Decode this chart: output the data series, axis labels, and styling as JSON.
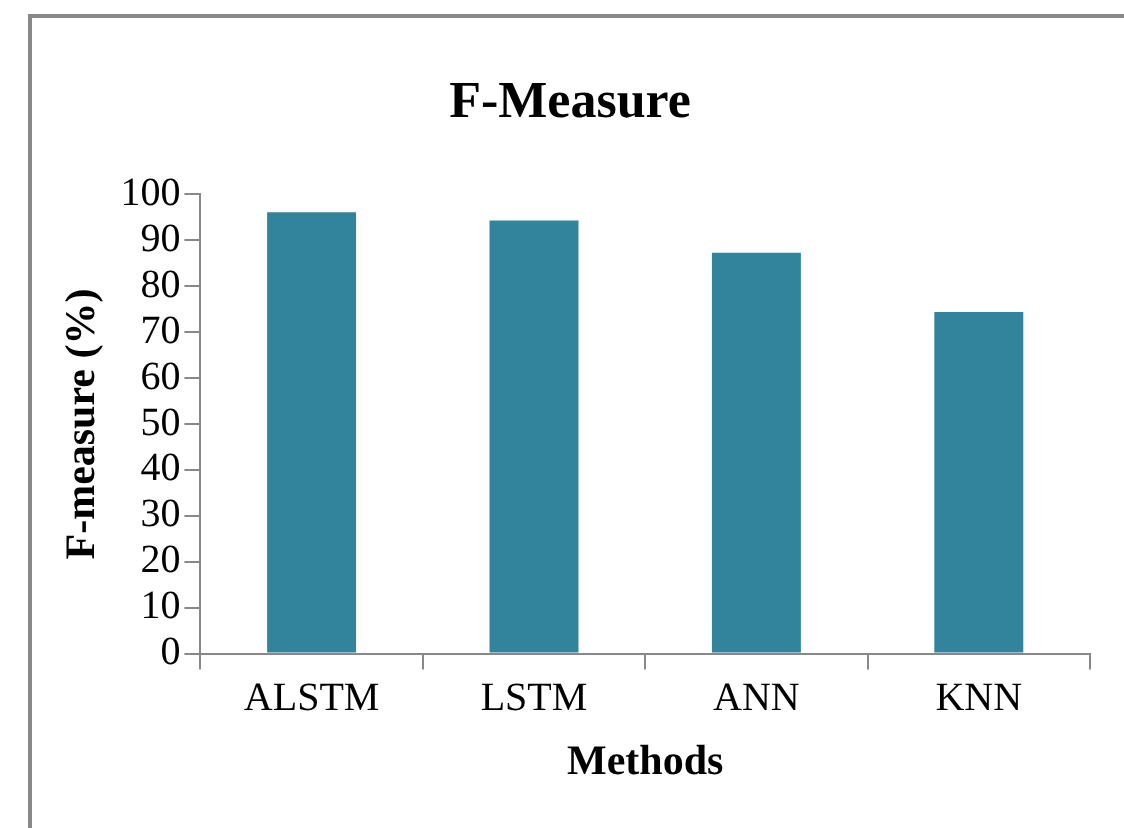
{
  "chart_data": {
    "type": "bar",
    "title": "F-Measure",
    "xlabel": "Methods",
    "ylabel": "F-measure (%)",
    "categories": [
      "ALSTM",
      "LSTM",
      "ANN",
      "KNN"
    ],
    "values": [
      96.1,
      94.3,
      87.3,
      74.4
    ],
    "color": "#31849b",
    "ylim": [
      0,
      100
    ],
    "yticks": [
      0,
      10,
      20,
      30,
      40,
      50,
      60,
      70,
      80,
      90,
      100
    ],
    "grid": false,
    "legend": false
  }
}
